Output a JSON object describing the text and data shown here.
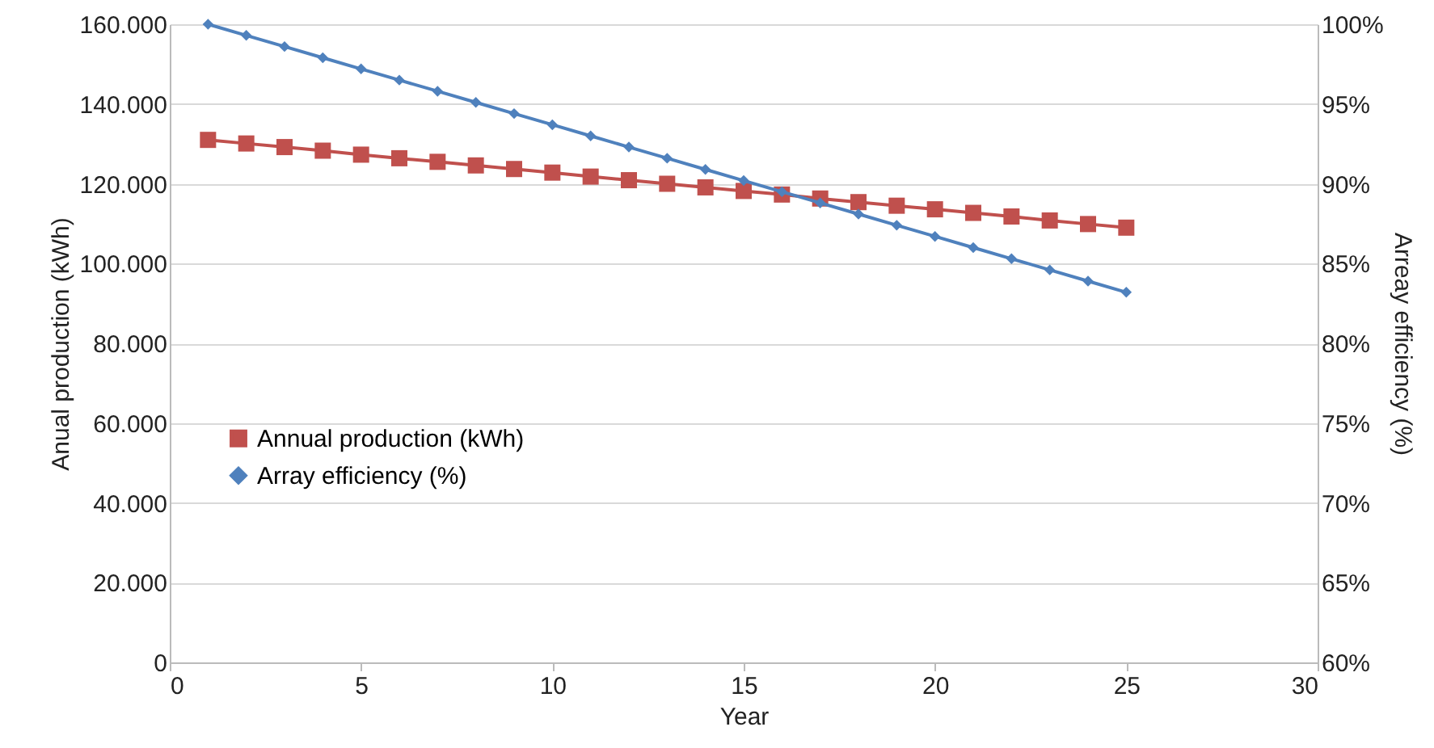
{
  "chart_data": {
    "type": "line",
    "xlabel": "Year",
    "ylabel": "Anual production (kWh)",
    "y2label": "Arreay efficiency (%)",
    "x": [
      1,
      2,
      3,
      4,
      5,
      6,
      7,
      8,
      9,
      10,
      11,
      12,
      13,
      14,
      15,
      16,
      17,
      18,
      19,
      20,
      21,
      22,
      23,
      24,
      25
    ],
    "xlim": [
      0,
      30
    ],
    "xticks": [
      0,
      5,
      10,
      15,
      20,
      25,
      30
    ],
    "ylim": [
      0,
      160000
    ],
    "yticks": [
      {
        "value": 0,
        "label": "0"
      },
      {
        "value": 20000,
        "label": "20.000"
      },
      {
        "value": 40000,
        "label": "40.000"
      },
      {
        "value": 60000,
        "label": "60.000"
      },
      {
        "value": 80000,
        "label": "80.000"
      },
      {
        "value": 100000,
        "label": "100.000"
      },
      {
        "value": 120000,
        "label": "120.000"
      },
      {
        "value": 140000,
        "label": "140.000"
      },
      {
        "value": 160000,
        "label": "160.000"
      }
    ],
    "y2lim": [
      60,
      100
    ],
    "y2ticks": [
      {
        "value": 60,
        "label": "60%"
      },
      {
        "value": 65,
        "label": "65%"
      },
      {
        "value": 70,
        "label": "70%"
      },
      {
        "value": 75,
        "label": "75%"
      },
      {
        "value": 80,
        "label": "80%"
      },
      {
        "value": 85,
        "label": "85%"
      },
      {
        "value": 90,
        "label": "90%"
      },
      {
        "value": 95,
        "label": "95%"
      },
      {
        "value": 100,
        "label": "100%"
      }
    ],
    "grid": "y",
    "legend": "left",
    "line_style": "solid",
    "series": [
      {
        "name": "Annual production (kWh)",
        "color": "#c0504d",
        "marker": "square",
        "values": [
          131000,
          130100,
          129200,
          128300,
          127300,
          126400,
          125500,
          124600,
          123700,
          122800,
          121800,
          120900,
          120000,
          119100,
          118200,
          117300,
          116300,
          115400,
          114500,
          113600,
          112700,
          111800,
          110800,
          109900,
          109000
        ]
      },
      {
        "name": "Array efficiency (%)",
        "color": "#4f81bd",
        "marker": "diamond",
        "axis": "y2",
        "values": [
          100,
          99.3,
          98.6,
          97.9,
          97.2,
          96.5,
          95.8,
          95.1,
          94.4,
          93.7,
          93.0,
          92.3,
          91.6,
          90.9,
          90.2,
          89.5,
          88.8,
          88.1,
          87.4,
          86.7,
          86.0,
          85.3,
          84.6,
          83.9,
          83.2
        ]
      }
    ]
  }
}
